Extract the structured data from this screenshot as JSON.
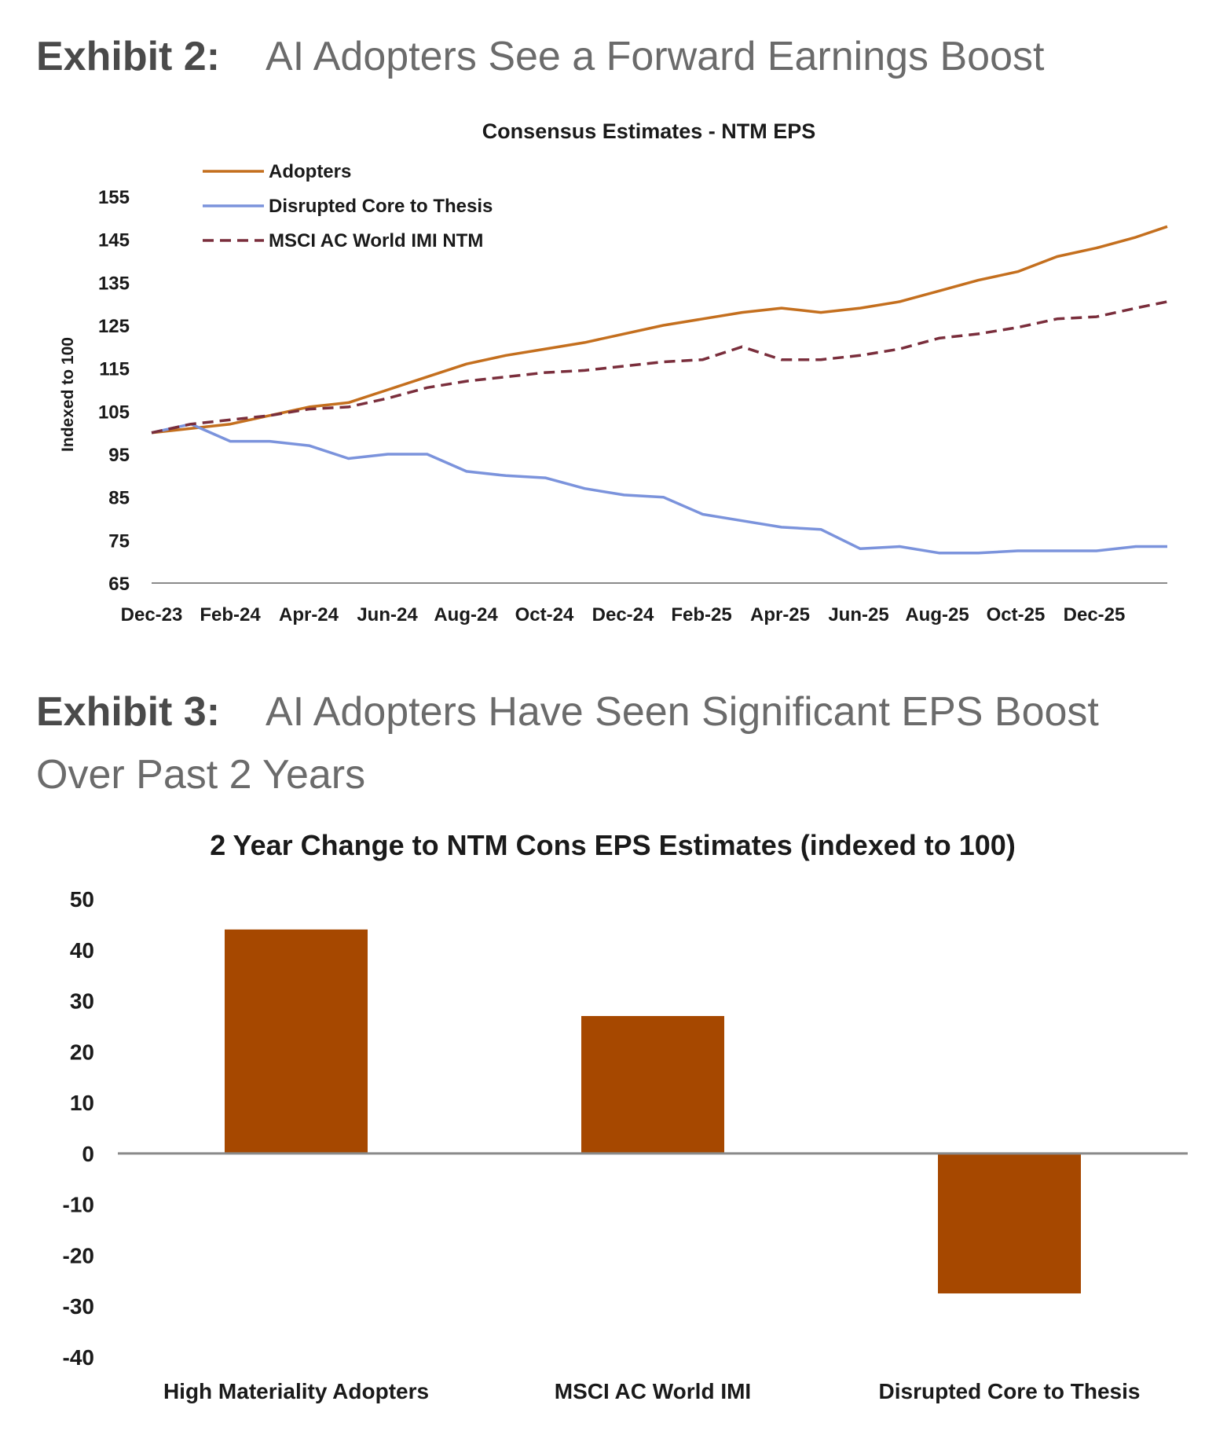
{
  "exhibit2": {
    "label": "Exhibit 2:",
    "title": "AI Adopters See a Forward Earnings Boost"
  },
  "exhibit3": {
    "label": "Exhibit 3:",
    "title": "AI Adopters Have Seen Significant EPS Boost Over Past 2 Years"
  },
  "colors": {
    "adopters": "#c46f1e",
    "disrupted": "#7b93dc",
    "msci": "#7a2e3c",
    "bar": "#a64800",
    "axis": "#8a8a8a",
    "text": "#1a1a1a"
  },
  "chart_data": [
    {
      "type": "line",
      "title": "Consensus Estimates - NTM EPS",
      "ylabel": "Indexed to 100",
      "xlabel": "",
      "ylim": [
        65,
        155
      ],
      "yticks": [
        65,
        75,
        85,
        95,
        105,
        115,
        125,
        135,
        145,
        155
      ],
      "xticks": [
        "Dec-23",
        "Feb-24",
        "Apr-24",
        "Jun-24",
        "Aug-24",
        "Oct-24",
        "Dec-24",
        "Feb-25",
        "Apr-25",
        "Jun-25",
        "Aug-25",
        "Oct-25",
        "Dec-25"
      ],
      "x": [
        0,
        0.5,
        1,
        1.5,
        2,
        2.5,
        3,
        3.5,
        4,
        4.5,
        5,
        5.5,
        6,
        6.5,
        7,
        7.5,
        8,
        8.5,
        9,
        9.5,
        10,
        10.5,
        11,
        11.5,
        12,
        12.5,
        12.9
      ],
      "legend": "top-left",
      "grid": false,
      "series": [
        {
          "name": "Adopters",
          "style": "solid",
          "values": [
            100,
            101,
            102,
            104,
            106,
            107,
            110,
            113,
            116,
            118,
            119.5,
            121,
            123,
            125,
            126.5,
            128,
            129,
            128,
            129,
            130.5,
            133,
            135.5,
            137.5,
            141,
            143,
            145.5,
            148
          ]
        },
        {
          "name": "Disrupted Core to Thesis",
          "style": "solid",
          "values": [
            100,
            102,
            98,
            98,
            97,
            94,
            95,
            95,
            91,
            90,
            89.5,
            87,
            85.5,
            85,
            81,
            79.5,
            78,
            77.5,
            73,
            73.5,
            72,
            72,
            72.5,
            72.5,
            72.5,
            73.5,
            73.5
          ]
        },
        {
          "name": "MSCI AC World IMI NTM",
          "style": "dashed",
          "values": [
            100,
            102,
            103,
            104,
            105.5,
            106,
            108,
            110.5,
            112,
            113,
            114,
            114.5,
            115.5,
            116.5,
            117,
            120,
            117,
            117,
            118,
            119.5,
            122,
            123,
            124.5,
            126.5,
            127,
            129,
            130.5
          ]
        }
      ]
    },
    {
      "type": "bar",
      "title": "2 Year Change to NTM Cons EPS Estimates (indexed to 100)",
      "xlabel": "",
      "ylabel": "",
      "ylim": [
        -40,
        50
      ],
      "yticks": [
        50,
        40,
        30,
        20,
        10,
        0,
        -10,
        -20,
        -30,
        -40
      ],
      "categories": [
        "High Materiality Adopters",
        "MSCI AC World IMI",
        "Disrupted Core to Thesis"
      ],
      "values": [
        44,
        27,
        -27.5
      ],
      "grid": false
    }
  ]
}
